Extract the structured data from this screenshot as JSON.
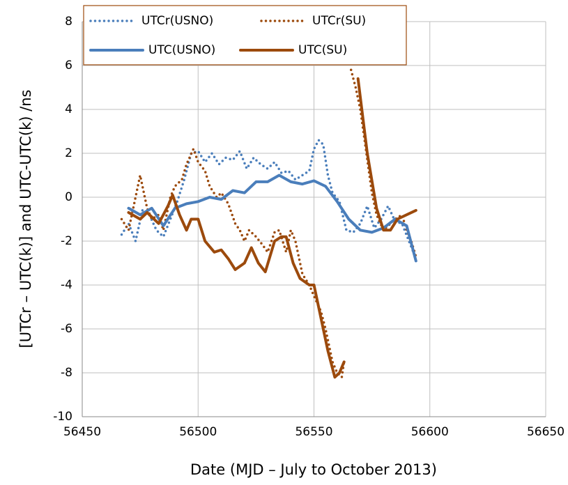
{
  "chart_data": {
    "type": "line",
    "x_label": "Date (MJD – July to October 2013)",
    "y_label": "[UTCr – UTC(k)] and UTC-UTC(k)   /ns",
    "xlim": [
      56450,
      56650
    ],
    "xticks": [
      56450,
      56500,
      56550,
      56600,
      56650
    ],
    "ylim": [
      -10,
      8
    ],
    "yticks": [
      -10,
      -8,
      -6,
      -4,
      -2,
      0,
      2,
      4,
      6,
      8
    ],
    "grid": true,
    "series": [
      {
        "name": "UTCr(USNO)",
        "color": "#4a7ebb",
        "style": "dotted",
        "x": [
          56467,
          56470,
          56473,
          56476,
          56479,
          56482,
          56485,
          56488,
          56491,
          56494,
          56497,
          56500,
          56503,
          56506,
          56509,
          56512,
          56515,
          56518,
          56521,
          56524,
          56527,
          56530,
          56533,
          56536,
          56539,
          56542,
          56545,
          56548,
          56550,
          56552,
          56554,
          56556,
          56558,
          56561,
          56564,
          56567,
          56570,
          56573,
          56576,
          56579,
          56582,
          56585,
          56588,
          56591,
          56594
        ],
        "values": [
          -1.7,
          -1.2,
          -2.0,
          -0.6,
          -0.8,
          -1.5,
          -1.8,
          -1.0,
          -0.2,
          0.8,
          2.0,
          2.1,
          1.6,
          2.0,
          1.5,
          1.8,
          1.7,
          2.1,
          1.3,
          1.8,
          1.5,
          1.3,
          1.6,
          1.1,
          1.2,
          0.8,
          1.0,
          1.2,
          2.2,
          2.6,
          2.4,
          1.0,
          0.2,
          -0.2,
          -1.5,
          -1.6,
          -1.2,
          -0.4,
          -1.4,
          -1.0,
          -0.4,
          -1.1,
          -1.2,
          -2.0,
          -2.8
        ]
      },
      {
        "name": "UTCr(SU)",
        "color": "#9c4a0c",
        "style": "dotted",
        "x": [
          56467,
          56470,
          56473,
          56475,
          56478,
          56480,
          56483,
          56485,
          56488,
          56490,
          56493,
          56495,
          56498,
          56500,
          56503,
          56505,
          56508,
          56510,
          56513,
          56516,
          56518,
          56520,
          56522,
          56525,
          56528,
          56530,
          56533,
          56535,
          56538,
          56540,
          56542,
          56545,
          56548,
          56550,
          56553,
          56555,
          56558,
          56560,
          56562,
          56563,
          null,
          56566,
          56568,
          56570,
          56572,
          56575,
          56577,
          56580,
          56583,
          56585,
          56588,
          56590,
          56592,
          56594
        ],
        "values": [
          -1.0,
          -1.5,
          0.0,
          1.0,
          -0.5,
          -1.0,
          -0.8,
          -1.5,
          0.0,
          0.5,
          0.8,
          1.5,
          2.2,
          1.6,
          1.2,
          0.5,
          0.0,
          0.2,
          -0.3,
          -1.2,
          -1.5,
          -2.0,
          -1.5,
          -1.8,
          -2.2,
          -2.5,
          -1.6,
          -1.5,
          -2.5,
          -1.5,
          -2.0,
          -3.5,
          -4.0,
          -4.5,
          -5.2,
          -6.0,
          -7.5,
          -8.0,
          -8.2,
          -7.5,
          null,
          5.8,
          5.0,
          4.0,
          2.5,
          0.2,
          -0.8,
          -1.5,
          -1.2,
          -1.0,
          -0.8,
          -1.5,
          -2.0,
          -2.7
        ]
      },
      {
        "name": "UTC(USNO)",
        "color": "#4a7ebb",
        "style": "solid",
        "x": [
          56470,
          56475,
          56480,
          56485,
          56490,
          56495,
          56500,
          56505,
          56510,
          56515,
          56520,
          56525,
          56530,
          56535,
          56540,
          56545,
          56550,
          56555,
          56560,
          56565,
          56570,
          56575,
          56580,
          56585,
          56590,
          56594
        ],
        "values": [
          -0.5,
          -0.8,
          -0.5,
          -1.3,
          -0.5,
          -0.3,
          -0.2,
          0.0,
          -0.1,
          0.3,
          0.2,
          0.7,
          0.7,
          1.0,
          0.7,
          0.6,
          0.75,
          0.5,
          -0.2,
          -1.0,
          -1.5,
          -1.6,
          -1.4,
          -1.0,
          -1.3,
          -2.9
        ]
      },
      {
        "name": "UTC(SU)",
        "color": "#9c4a0c",
        "style": "solid",
        "x": [
          56470,
          56475,
          56478,
          56483,
          56487,
          56489,
          56492,
          56495,
          56497,
          56500,
          56503,
          56507,
          56510,
          56513,
          56516,
          56520,
          56523,
          56526,
          56529,
          56533,
          56536,
          56538,
          56541,
          56544,
          56548,
          56550,
          56553,
          56556,
          56559,
          56561,
          56563,
          null,
          56569,
          56573,
          56577,
          56580,
          56583,
          56586,
          56590,
          56594
        ],
        "values": [
          -0.7,
          -1.0,
          -0.7,
          -1.2,
          -0.4,
          0.1,
          -0.8,
          -1.5,
          -1.0,
          -1.0,
          -2.0,
          -2.5,
          -2.4,
          -2.8,
          -3.3,
          -3.0,
          -2.3,
          -3.0,
          -3.4,
          -2.0,
          -1.8,
          -1.8,
          -3.0,
          -3.7,
          -4.0,
          -4.0,
          -5.5,
          -7.0,
          -8.2,
          -8.0,
          -7.5,
          null,
          5.4,
          2.0,
          -0.5,
          -1.5,
          -1.5,
          -1.0,
          -0.8,
          -0.6
        ]
      }
    ]
  }
}
